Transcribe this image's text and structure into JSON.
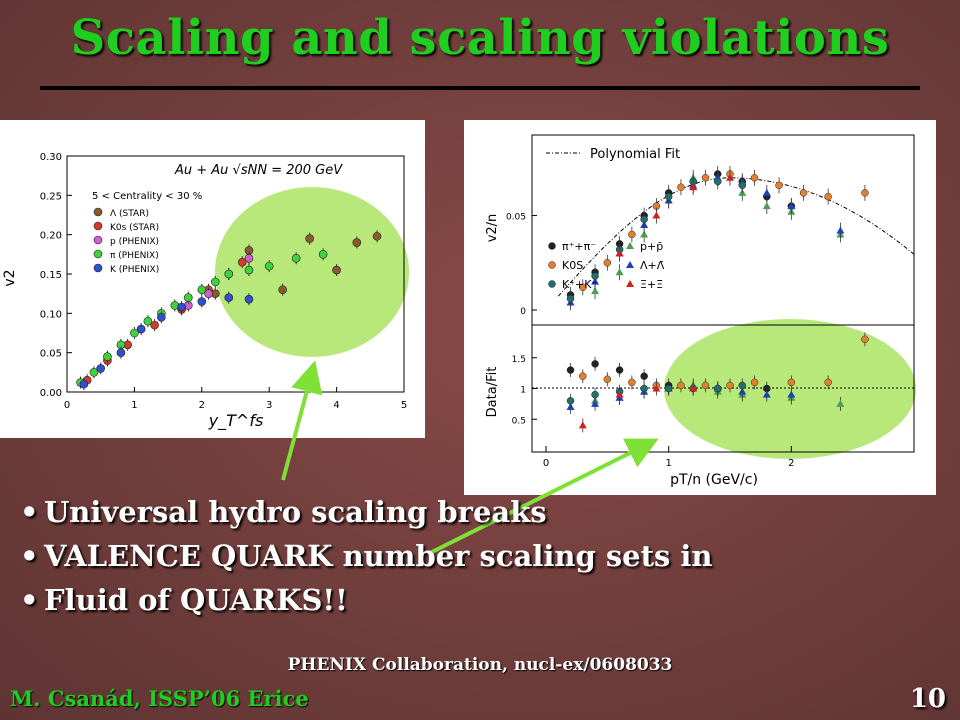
{
  "slide": {
    "title": "Scaling and scaling violations",
    "bullets": [
      "Universal hydro scaling breaks",
      "VALENCE QUARK number scaling sets in",
      "Fluid of QUARKS!!"
    ],
    "credit": "PHENIX Collaboration, nucl-ex/0608033",
    "footer": "M. Csanád, ISSP’06 Erice",
    "page_number": "10",
    "colors": {
      "title": "#1fcf1f",
      "highlight": "#b9e87a",
      "arrow": "#7fe036"
    }
  },
  "chart_data": [
    {
      "type": "scatter",
      "xlabel": "y_T^fs",
      "ylabel": "v2",
      "annotation": "Au + Au √sNN = 200 GeV",
      "subtitle": "5 < Centrality < 30 %",
      "xlim": [
        0,
        5
      ],
      "ylim": [
        0,
        0.3
      ],
      "xticks": [
        "0",
        "1",
        "2",
        "3",
        "4",
        "5"
      ],
      "yticks": [
        "0.00",
        "0.05",
        "0.10",
        "0.15",
        "0.20",
        "0.25",
        "0.30"
      ],
      "legend": [
        "Λ (STAR)",
        "K0s (STAR)",
        "p (PHENIX)",
        "π (PHENIX)",
        "K (PHENIX)"
      ],
      "series": [
        {
          "name": "Λ (STAR)",
          "color": "#8b5a2b",
          "points": [
            [
              2.2,
              0.125
            ],
            [
              2.7,
              0.18
            ],
            [
              3.2,
              0.13
            ],
            [
              3.6,
              0.195
            ],
            [
              4.0,
              0.155
            ],
            [
              4.3,
              0.19
            ],
            [
              4.6,
              0.198
            ]
          ]
        },
        {
          "name": "K0s (STAR)",
          "color": "#d23a2a",
          "points": [
            [
              0.3,
              0.015
            ],
            [
              0.6,
              0.04
            ],
            [
              0.9,
              0.06
            ],
            [
              1.3,
              0.085
            ],
            [
              1.7,
              0.105
            ],
            [
              2.1,
              0.13
            ],
            [
              2.6,
              0.165
            ]
          ]
        },
        {
          "name": "p (PHENIX)",
          "color": "#d060d0",
          "points": [
            [
              1.8,
              0.11
            ],
            [
              2.1,
              0.125
            ],
            [
              2.4,
              0.15
            ],
            [
              2.7,
              0.17
            ]
          ]
        },
        {
          "name": "π (PHENIX)",
          "color": "#40d040",
          "points": [
            [
              0.2,
              0.012
            ],
            [
              0.4,
              0.025
            ],
            [
              0.6,
              0.045
            ],
            [
              0.8,
              0.06
            ],
            [
              1.0,
              0.075
            ],
            [
              1.2,
              0.09
            ],
            [
              1.4,
              0.1
            ],
            [
              1.6,
              0.11
            ],
            [
              1.8,
              0.12
            ],
            [
              2.0,
              0.13
            ],
            [
              2.2,
              0.14
            ],
            [
              2.4,
              0.15
            ],
            [
              2.7,
              0.155
            ],
            [
              3.0,
              0.16
            ],
            [
              3.4,
              0.17
            ],
            [
              3.8,
              0.175
            ]
          ]
        },
        {
          "name": "K (PHENIX)",
          "color": "#3050d0",
          "points": [
            [
              0.25,
              0.01
            ],
            [
              0.5,
              0.03
            ],
            [
              0.8,
              0.05
            ],
            [
              1.1,
              0.08
            ],
            [
              1.4,
              0.095
            ],
            [
              1.7,
              0.108
            ],
            [
              2.0,
              0.115
            ],
            [
              2.4,
              0.12
            ],
            [
              2.7,
              0.118
            ]
          ]
        }
      ]
    },
    {
      "type": "scatter",
      "xlabel": "pT/n (GeV/c)",
      "ylabel_top": "v2/n",
      "ylabel_bottom": "Data/Fit",
      "legend_top": "Polynomial Fit",
      "xticks": [
        "0",
        "1",
        "2"
      ],
      "yticks_top": [
        "0",
        "0.05"
      ],
      "yticks_bottom": [
        "0.5",
        "1",
        "1.5"
      ],
      "xlim": [
        0,
        3
      ],
      "ylim_top": [
        0,
        0.09
      ],
      "ylim_bottom": [
        0,
        2
      ],
      "legend": [
        "π⁺+π⁻",
        "p+p̄",
        "K0S",
        "Λ+Λ̄",
        "K⁺+K⁻",
        "Ξ+Ξ̄"
      ],
      "series": [
        {
          "name": "π⁺+π⁻",
          "color": "#222222",
          "top": [
            [
              0.2,
              0.008
            ],
            [
              0.4,
              0.02
            ],
            [
              0.6,
              0.035
            ],
            [
              0.8,
              0.05
            ],
            [
              1.0,
              0.062
            ],
            [
              1.2,
              0.068
            ],
            [
              1.4,
              0.072
            ],
            [
              1.6,
              0.068
            ],
            [
              1.8,
              0.06
            ],
            [
              2.0,
              0.055
            ]
          ],
          "ratio": [
            [
              0.2,
              1.3
            ],
            [
              0.4,
              1.4
            ],
            [
              0.6,
              1.3
            ],
            [
              0.8,
              1.2
            ],
            [
              1.0,
              1.05
            ],
            [
              1.4,
              1.0
            ],
            [
              1.8,
              1.0
            ]
          ]
        },
        {
          "name": "p+p̄",
          "color": "#4aa050",
          "top": [
            [
              0.4,
              0.01
            ],
            [
              0.6,
              0.02
            ],
            [
              0.8,
              0.04
            ],
            [
              1.0,
              0.058
            ],
            [
              1.2,
              0.07
            ],
            [
              1.4,
              0.07
            ],
            [
              1.6,
              0.062
            ],
            [
              1.8,
              0.055
            ],
            [
              2.0,
              0.052
            ],
            [
              2.4,
              0.04
            ]
          ],
          "ratio": [
            [
              0.4,
              0.8
            ],
            [
              0.6,
              0.85
            ],
            [
              0.8,
              0.95
            ],
            [
              1.0,
              1.0
            ],
            [
              1.2,
              1.05
            ],
            [
              1.4,
              0.95
            ],
            [
              1.6,
              0.9
            ],
            [
              2.0,
              0.85
            ],
            [
              2.4,
              0.75
            ]
          ]
        },
        {
          "name": "K0S",
          "color": "#e08030",
          "top": [
            [
              0.3,
              0.012
            ],
            [
              0.5,
              0.025
            ],
            [
              0.7,
              0.04
            ],
            [
              0.9,
              0.055
            ],
            [
              1.1,
              0.065
            ],
            [
              1.3,
              0.07
            ],
            [
              1.5,
              0.072
            ],
            [
              1.7,
              0.07
            ],
            [
              1.9,
              0.066
            ],
            [
              2.1,
              0.062
            ],
            [
              2.3,
              0.06
            ],
            [
              2.6,
              0.062
            ]
          ],
          "ratio": [
            [
              0.3,
              1.2
            ],
            [
              0.5,
              1.15
            ],
            [
              0.7,
              1.1
            ],
            [
              0.9,
              1.05
            ],
            [
              1.1,
              1.05
            ],
            [
              1.3,
              1.05
            ],
            [
              1.5,
              1.05
            ],
            [
              1.7,
              1.1
            ],
            [
              2.0,
              1.1
            ],
            [
              2.3,
              1.1
            ],
            [
              2.6,
              1.8
            ]
          ]
        },
        {
          "name": "Λ+Λ̄",
          "color": "#2040c0",
          "top": [
            [
              0.2,
              0.004
            ],
            [
              0.4,
              0.015
            ],
            [
              0.6,
              0.03
            ],
            [
              0.8,
              0.045
            ],
            [
              1.0,
              0.058
            ],
            [
              1.2,
              0.066
            ],
            [
              1.4,
              0.07
            ],
            [
              1.6,
              0.068
            ],
            [
              1.8,
              0.062
            ],
            [
              2.0,
              0.055
            ],
            [
              2.4,
              0.042
            ]
          ],
          "ratio": [
            [
              0.2,
              0.7
            ],
            [
              0.4,
              0.75
            ],
            [
              0.6,
              0.85
            ],
            [
              0.8,
              0.95
            ],
            [
              1.0,
              1.0
            ],
            [
              1.2,
              1.0
            ],
            [
              1.4,
              1.0
            ],
            [
              1.6,
              0.95
            ],
            [
              1.8,
              0.9
            ],
            [
              2.0,
              0.9
            ]
          ]
        },
        {
          "name": "K⁺+K⁻",
          "color": "#207070",
          "top": [
            [
              0.2,
              0.006
            ],
            [
              0.4,
              0.018
            ],
            [
              0.6,
              0.032
            ],
            [
              0.8,
              0.048
            ],
            [
              1.0,
              0.06
            ],
            [
              1.2,
              0.068
            ],
            [
              1.4,
              0.068
            ],
            [
              1.6,
              0.066
            ]
          ],
          "ratio": [
            [
              0.2,
              0.8
            ],
            [
              0.4,
              0.9
            ],
            [
              0.6,
              0.95
            ],
            [
              0.8,
              1.0
            ],
            [
              1.0,
              1.0
            ],
            [
              1.2,
              1.0
            ],
            [
              1.4,
              1.0
            ],
            [
              1.6,
              1.05
            ]
          ]
        },
        {
          "name": "Ξ+Ξ̄",
          "color": "#d02020",
          "top": [
            [
              0.6,
              0.03
            ],
            [
              0.9,
              0.05
            ],
            [
              1.2,
              0.065
            ],
            [
              1.5,
              0.07
            ]
          ],
          "ratio": [
            [
              0.3,
              0.4
            ],
            [
              0.6,
              0.9
            ],
            [
              0.9,
              1.0
            ],
            [
              1.2,
              1.0
            ]
          ]
        }
      ]
    }
  ]
}
